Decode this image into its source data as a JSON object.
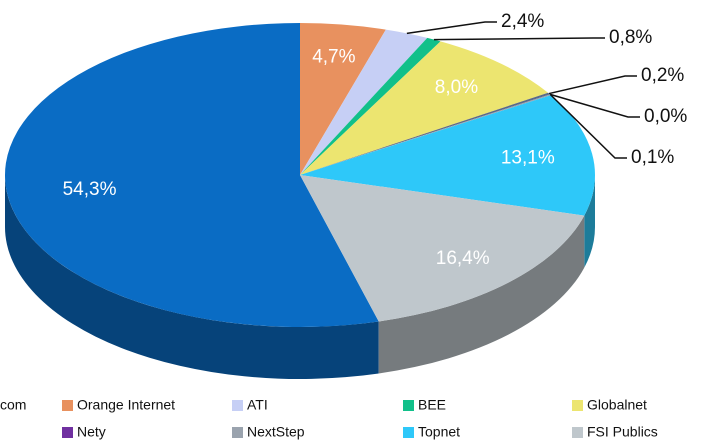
{
  "chart_data": {
    "type": "pie3d",
    "categories": [
      "com",
      "Orange Internet",
      "ATI",
      "BEE",
      "Globalnet",
      null,
      "Nety",
      "NextStep",
      "Topnet",
      "FSI Publics"
    ],
    "values": [
      54.3,
      4.7,
      2.4,
      0.8,
      8.0,
      0.2,
      0.0,
      0.1,
      13.1,
      16.4
    ],
    "value_labels": [
      "54,3%",
      "4,7%",
      "2,4%",
      "0,8%",
      "8,0%",
      "0,2%",
      "0,0%",
      "0,1%",
      "13,1%",
      "16,4%"
    ],
    "colors": [
      "#0a6cc4",
      "#e8915f",
      "#c6cff5",
      "#11c08a",
      "#ece570",
      "#5a6a8a",
      "#7030a0",
      "#9aa3ae",
      "#2ec8f9",
      "#bfc7cc"
    ]
  }
}
